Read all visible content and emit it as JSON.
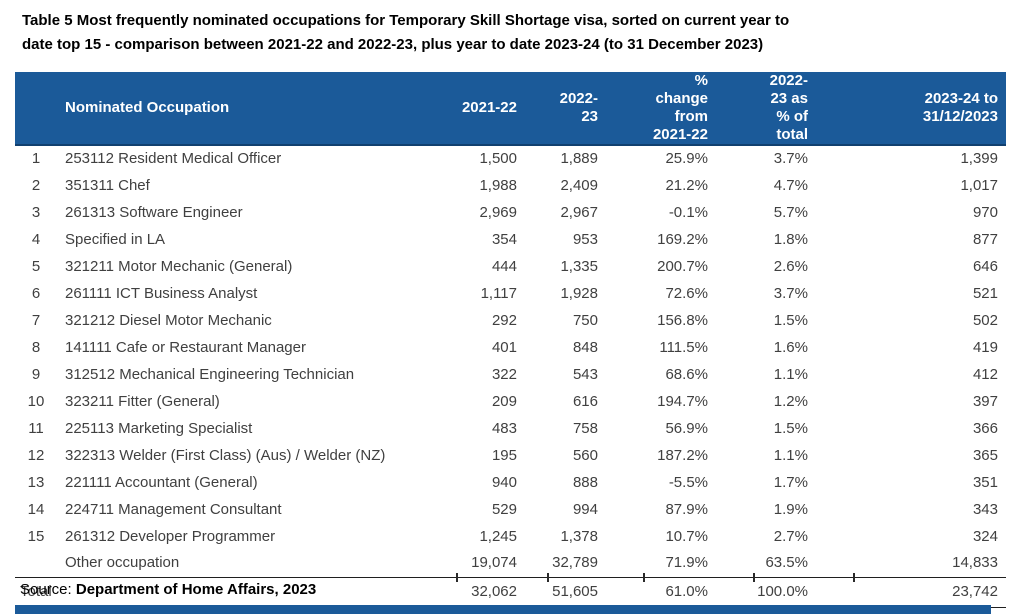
{
  "title": "Table 5 Most frequently nominated occupations for Temporary Skill Shortage visa, sorted on current year to\ndate top 15 - comparison between 2021-22 and 2022-23, plus year to date 2023-24 (to 31 December 2023)",
  "colors": {
    "header_bg": "#1B5A99",
    "body_text": "#404040",
    "rule": "#1F1F1F"
  },
  "table": {
    "columns": [
      {
        "key": "rank",
        "label": ""
      },
      {
        "key": "occupation",
        "label": "Nominated Occupation"
      },
      {
        "key": "y2122",
        "label": "2021-22"
      },
      {
        "key": "y2223",
        "label": "2022-23"
      },
      {
        "key": "pct_change",
        "label": "% change\nfrom 2021-22"
      },
      {
        "key": "pct_total",
        "label": "2022-23 as\n% of total"
      },
      {
        "key": "ytd",
        "label": "2023-24 to\n31/12/2023"
      }
    ],
    "rows": [
      {
        "rank": "1",
        "occupation": "253112 Resident Medical Officer",
        "y2122": "1,500",
        "y2223": "1,889",
        "pct_change": "25.9%",
        "pct_total": "3.7%",
        "ytd": "1,399"
      },
      {
        "rank": "2",
        "occupation": "351311 Chef",
        "y2122": "1,988",
        "y2223": "2,409",
        "pct_change": "21.2%",
        "pct_total": "4.7%",
        "ytd": "1,017"
      },
      {
        "rank": "3",
        "occupation": "261313 Software Engineer",
        "y2122": "2,969",
        "y2223": "2,967",
        "pct_change": "-0.1%",
        "pct_total": "5.7%",
        "ytd": "970"
      },
      {
        "rank": "4",
        "occupation": "Specified in LA",
        "y2122": "354",
        "y2223": "953",
        "pct_change": "169.2%",
        "pct_total": "1.8%",
        "ytd": "877"
      },
      {
        "rank": "5",
        "occupation": "321211 Motor Mechanic (General)",
        "y2122": "444",
        "y2223": "1,335",
        "pct_change": "200.7%",
        "pct_total": "2.6%",
        "ytd": "646"
      },
      {
        "rank": "6",
        "occupation": "261111 ICT Business Analyst",
        "y2122": "1,117",
        "y2223": "1,928",
        "pct_change": "72.6%",
        "pct_total": "3.7%",
        "ytd": "521"
      },
      {
        "rank": "7",
        "occupation": "321212 Diesel Motor Mechanic",
        "y2122": "292",
        "y2223": "750",
        "pct_change": "156.8%",
        "pct_total": "1.5%",
        "ytd": "502"
      },
      {
        "rank": "8",
        "occupation": "141111 Cafe or Restaurant Manager",
        "y2122": "401",
        "y2223": "848",
        "pct_change": "111.5%",
        "pct_total": "1.6%",
        "ytd": "419"
      },
      {
        "rank": "9",
        "occupation": "312512 Mechanical Engineering Technician",
        "y2122": "322",
        "y2223": "543",
        "pct_change": "68.6%",
        "pct_total": "1.1%",
        "ytd": "412"
      },
      {
        "rank": "10",
        "occupation": "323211 Fitter (General)",
        "y2122": "209",
        "y2223": "616",
        "pct_change": "194.7%",
        "pct_total": "1.2%",
        "ytd": "397"
      },
      {
        "rank": "11",
        "occupation": "225113 Marketing Specialist",
        "y2122": "483",
        "y2223": "758",
        "pct_change": "56.9%",
        "pct_total": "1.5%",
        "ytd": "366"
      },
      {
        "rank": "12",
        "occupation": "322313 Welder (First Class) (Aus) / Welder (NZ)",
        "y2122": "195",
        "y2223": "560",
        "pct_change": "187.2%",
        "pct_total": "1.1%",
        "ytd": "365"
      },
      {
        "rank": "13",
        "occupation": "221111 Accountant (General)",
        "y2122": "940",
        "y2223": "888",
        "pct_change": "-5.5%",
        "pct_total": "1.7%",
        "ytd": "351"
      },
      {
        "rank": "14",
        "occupation": "224711 Management Consultant",
        "y2122": "529",
        "y2223": "994",
        "pct_change": "87.9%",
        "pct_total": "1.9%",
        "ytd": "343"
      },
      {
        "rank": "15",
        "occupation": "261312 Developer Programmer",
        "y2122": "1,245",
        "y2223": "1,378",
        "pct_change": "10.7%",
        "pct_total": "2.7%",
        "ytd": "324"
      },
      {
        "rank": "",
        "occupation": "Other occupation",
        "y2122": "19,074",
        "y2223": "32,789",
        "pct_change": "71.9%",
        "pct_total": "63.5%",
        "ytd": "14,833",
        "is_other": true
      },
      {
        "rank": "",
        "occupation": "Total",
        "y2122": "32,062",
        "y2223": "51,605",
        "pct_change": "61.0%",
        "pct_total": "100.0%",
        "ytd": "23,742",
        "is_total": true
      }
    ]
  },
  "source": {
    "prefix": "Source: ",
    "text": "Department of Home Affairs, 2023"
  }
}
